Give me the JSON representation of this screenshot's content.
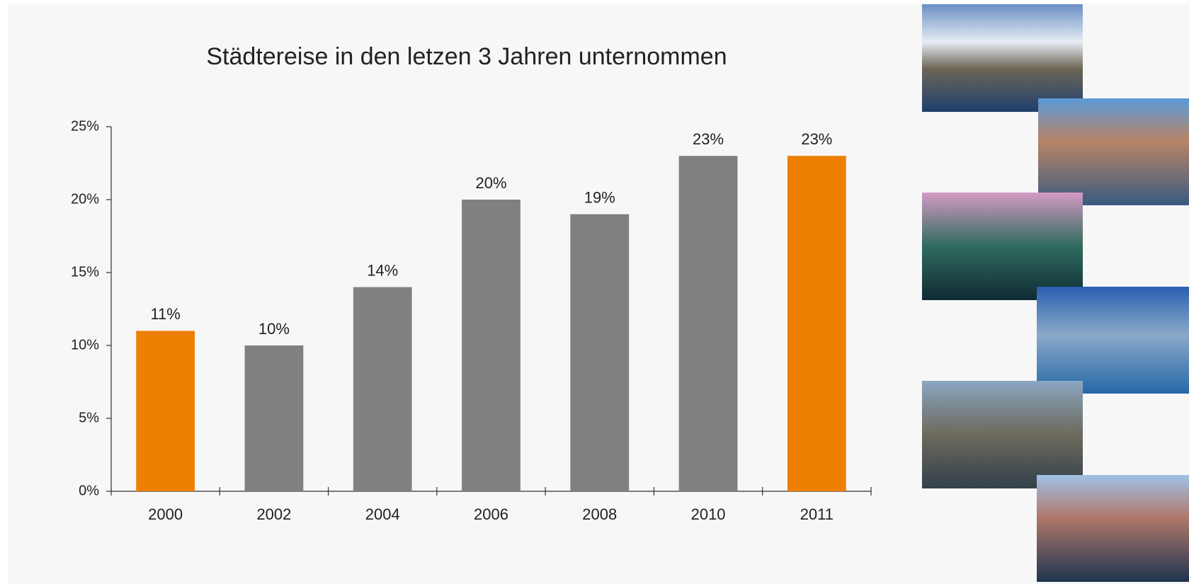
{
  "chart_data": {
    "type": "bar",
    "title": "Städtereise in den letzen 3 Jahren unternommen",
    "categories": [
      "2000",
      "2002",
      "2004",
      "2006",
      "2008",
      "2010",
      "2011"
    ],
    "values": [
      11,
      10,
      14,
      20,
      19,
      23,
      23
    ],
    "value_labels": [
      "11%",
      "10%",
      "14%",
      "20%",
      "19%",
      "23%",
      "23%"
    ],
    "colors": [
      "#ee7f00",
      "#808080",
      "#808080",
      "#808080",
      "#808080",
      "#808080",
      "#ee7f00"
    ],
    "ylim": [
      0,
      25
    ],
    "yticks": [
      {
        "value": 0,
        "label": "0%"
      },
      {
        "value": 5,
        "label": "5%"
      },
      {
        "value": 10,
        "label": "10%"
      },
      {
        "value": 15,
        "label": "15%"
      },
      {
        "value": 20,
        "label": "20%"
      },
      {
        "value": 25,
        "label": "25%"
      }
    ],
    "grid": false
  }
}
